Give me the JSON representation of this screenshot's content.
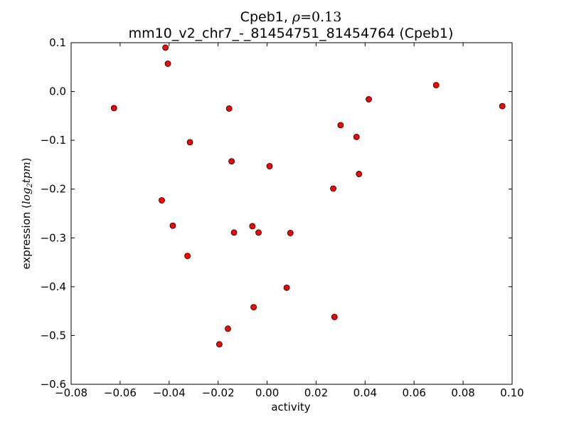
{
  "chart_data": {
    "type": "scatter",
    "title_prefix": "Cpeb1, ",
    "title_rho": "ρ",
    "title_eq": "=",
    "title_value": "0.13",
    "subtitle": "mm10_v2_chr7_-_81454751_81454764 (Cpeb1)",
    "xlabel": "activity",
    "ylabel_prefix": "expression (",
    "ylabel_math_log": "log",
    "ylabel_math_sub": "2",
    "ylabel_math_tpm": "tpm",
    "ylabel_suffix": ")",
    "xlim": [
      -0.08,
      0.1
    ],
    "ylim": [
      -0.6,
      0.1
    ],
    "xticks": [
      -0.08,
      -0.06,
      -0.04,
      -0.02,
      0.0,
      0.02,
      0.04,
      0.06,
      0.08,
      0.1
    ],
    "xtick_labels": [
      "−0.08",
      "−0.06",
      "−0.04",
      "−0.02",
      "0.00",
      "0.02",
      "0.04",
      "0.06",
      "0.08",
      "0.10"
    ],
    "yticks": [
      0.1,
      0.0,
      -0.1,
      -0.2,
      -0.3,
      -0.4,
      -0.5,
      -0.6
    ],
    "ytick_labels": [
      "0.1",
      "0.0",
      "−0.1",
      "−0.2",
      "−0.3",
      "−0.4",
      "−0.5",
      "−0.6"
    ],
    "grid": false,
    "marker_color": "#ff0000",
    "marker_edge": "#000000",
    "x": [
      -0.0625,
      -0.0415,
      -0.0405,
      -0.0155,
      -0.0315,
      -0.0145,
      0.001,
      -0.043,
      -0.0385,
      -0.0135,
      -0.006,
      -0.0035,
      0.0095,
      -0.0325,
      0.008,
      -0.0055,
      -0.016,
      -0.0195,
      0.069,
      0.0415,
      0.03,
      0.0365,
      0.027,
      0.0375,
      0.0275,
      0.096
    ],
    "y": [
      -0.034,
      0.09,
      0.057,
      -0.035,
      -0.104,
      -0.143,
      -0.153,
      -0.223,
      -0.275,
      -0.289,
      -0.276,
      -0.289,
      -0.29,
      -0.337,
      -0.402,
      -0.442,
      -0.486,
      -0.518,
      0.013,
      -0.016,
      -0.069,
      -0.093,
      -0.199,
      -0.169,
      -0.462,
      -0.03
    ]
  }
}
